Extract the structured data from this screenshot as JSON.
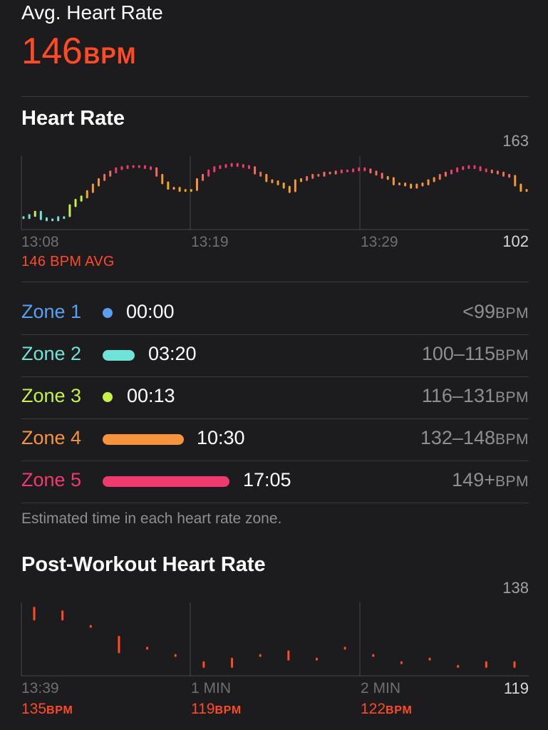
{
  "summary": {
    "label": "Avg. Heart Rate",
    "value": "146",
    "unit": "BPM"
  },
  "heart_rate": {
    "title": "Heart Rate",
    "max_label": "163",
    "min_label": "102",
    "time_labels": [
      "13:08",
      "13:19",
      "13:29"
    ],
    "avg_caption": "146 BPM AVG"
  },
  "zones": [
    {
      "name": "Zone 1",
      "duration": "00:00",
      "fraction": 0.0,
      "range": "<99",
      "unit": "BPM",
      "color": "#5aa0f0"
    },
    {
      "name": "Zone 2",
      "duration": "03:20",
      "fraction": 0.195,
      "range": "100–115",
      "unit": "BPM",
      "color": "#6fe3d8"
    },
    {
      "name": "Zone 3",
      "duration": "00:13",
      "fraction": 0.013,
      "range": "116–131",
      "unit": "BPM",
      "color": "#c6f04a"
    },
    {
      "name": "Zone 4",
      "duration": "10:30",
      "fraction": 0.616,
      "range": "132–148",
      "unit": "BPM",
      "color": "#f5943c"
    },
    {
      "name": "Zone 5",
      "duration": "17:05",
      "fraction": 1.0,
      "range": "149+",
      "unit": "BPM",
      "color": "#ee3a6e"
    }
  ],
  "zones_note": "Estimated time in each heart rate zone.",
  "post_workout": {
    "title": "Post-Workout Heart Rate",
    "max_label": "138",
    "min_label": "119",
    "time_labels": [
      "13:39",
      "1 MIN",
      "2 MIN"
    ],
    "stats": [
      {
        "value": "135",
        "unit": "BPM"
      },
      {
        "value": "119",
        "unit": "BPM"
      },
      {
        "value": "122",
        "unit": "BPM"
      }
    ]
  },
  "chart_data": [
    {
      "type": "scatter",
      "title": "Heart Rate",
      "ylim": [
        102,
        163
      ],
      "x_tick_labels": [
        "13:08",
        "13:19",
        "13:29"
      ],
      "y": [
        111,
        113,
        116,
        110,
        109,
        109,
        111,
        111,
        122,
        127,
        130,
        135,
        141,
        146,
        150,
        153,
        156,
        157,
        158,
        158,
        158,
        157,
        156,
        150,
        143,
        138,
        138,
        136,
        136,
        136,
        146,
        150,
        154,
        157,
        158,
        159,
        160,
        159,
        158,
        157,
        152,
        150,
        145,
        144,
        142,
        139,
        135,
        145,
        146,
        148,
        150,
        150,
        152,
        152,
        153,
        154,
        154,
        155,
        156,
        155,
        153,
        151,
        148,
        147,
        142,
        142,
        141,
        139,
        141,
        142,
        145,
        147,
        150,
        152,
        154,
        156,
        157,
        158,
        157,
        155,
        154,
        153,
        152,
        150,
        149,
        141,
        136,
        136
      ]
    },
    {
      "type": "scatter",
      "title": "Post-Workout Heart Rate",
      "ylim": [
        119,
        138
      ],
      "x_tick_labels": [
        "13:39",
        "1 MIN",
        "2 MIN"
      ],
      "y_ranges": [
        [
          134,
          137
        ],
        [
          134,
          136
        ],
        [
          132,
          132
        ],
        [
          125,
          129
        ],
        [
          126,
          126
        ],
        [
          124,
          124
        ],
        [
          121,
          122
        ],
        [
          121,
          123
        ],
        [
          124,
          124
        ],
        [
          123,
          125
        ],
        [
          123,
          123
        ],
        [
          126,
          126
        ],
        [
          124,
          124
        ],
        [
          122,
          122
        ],
        [
          123,
          123
        ],
        [
          121,
          121
        ],
        [
          121,
          122
        ],
        [
          121,
          122
        ]
      ]
    }
  ]
}
